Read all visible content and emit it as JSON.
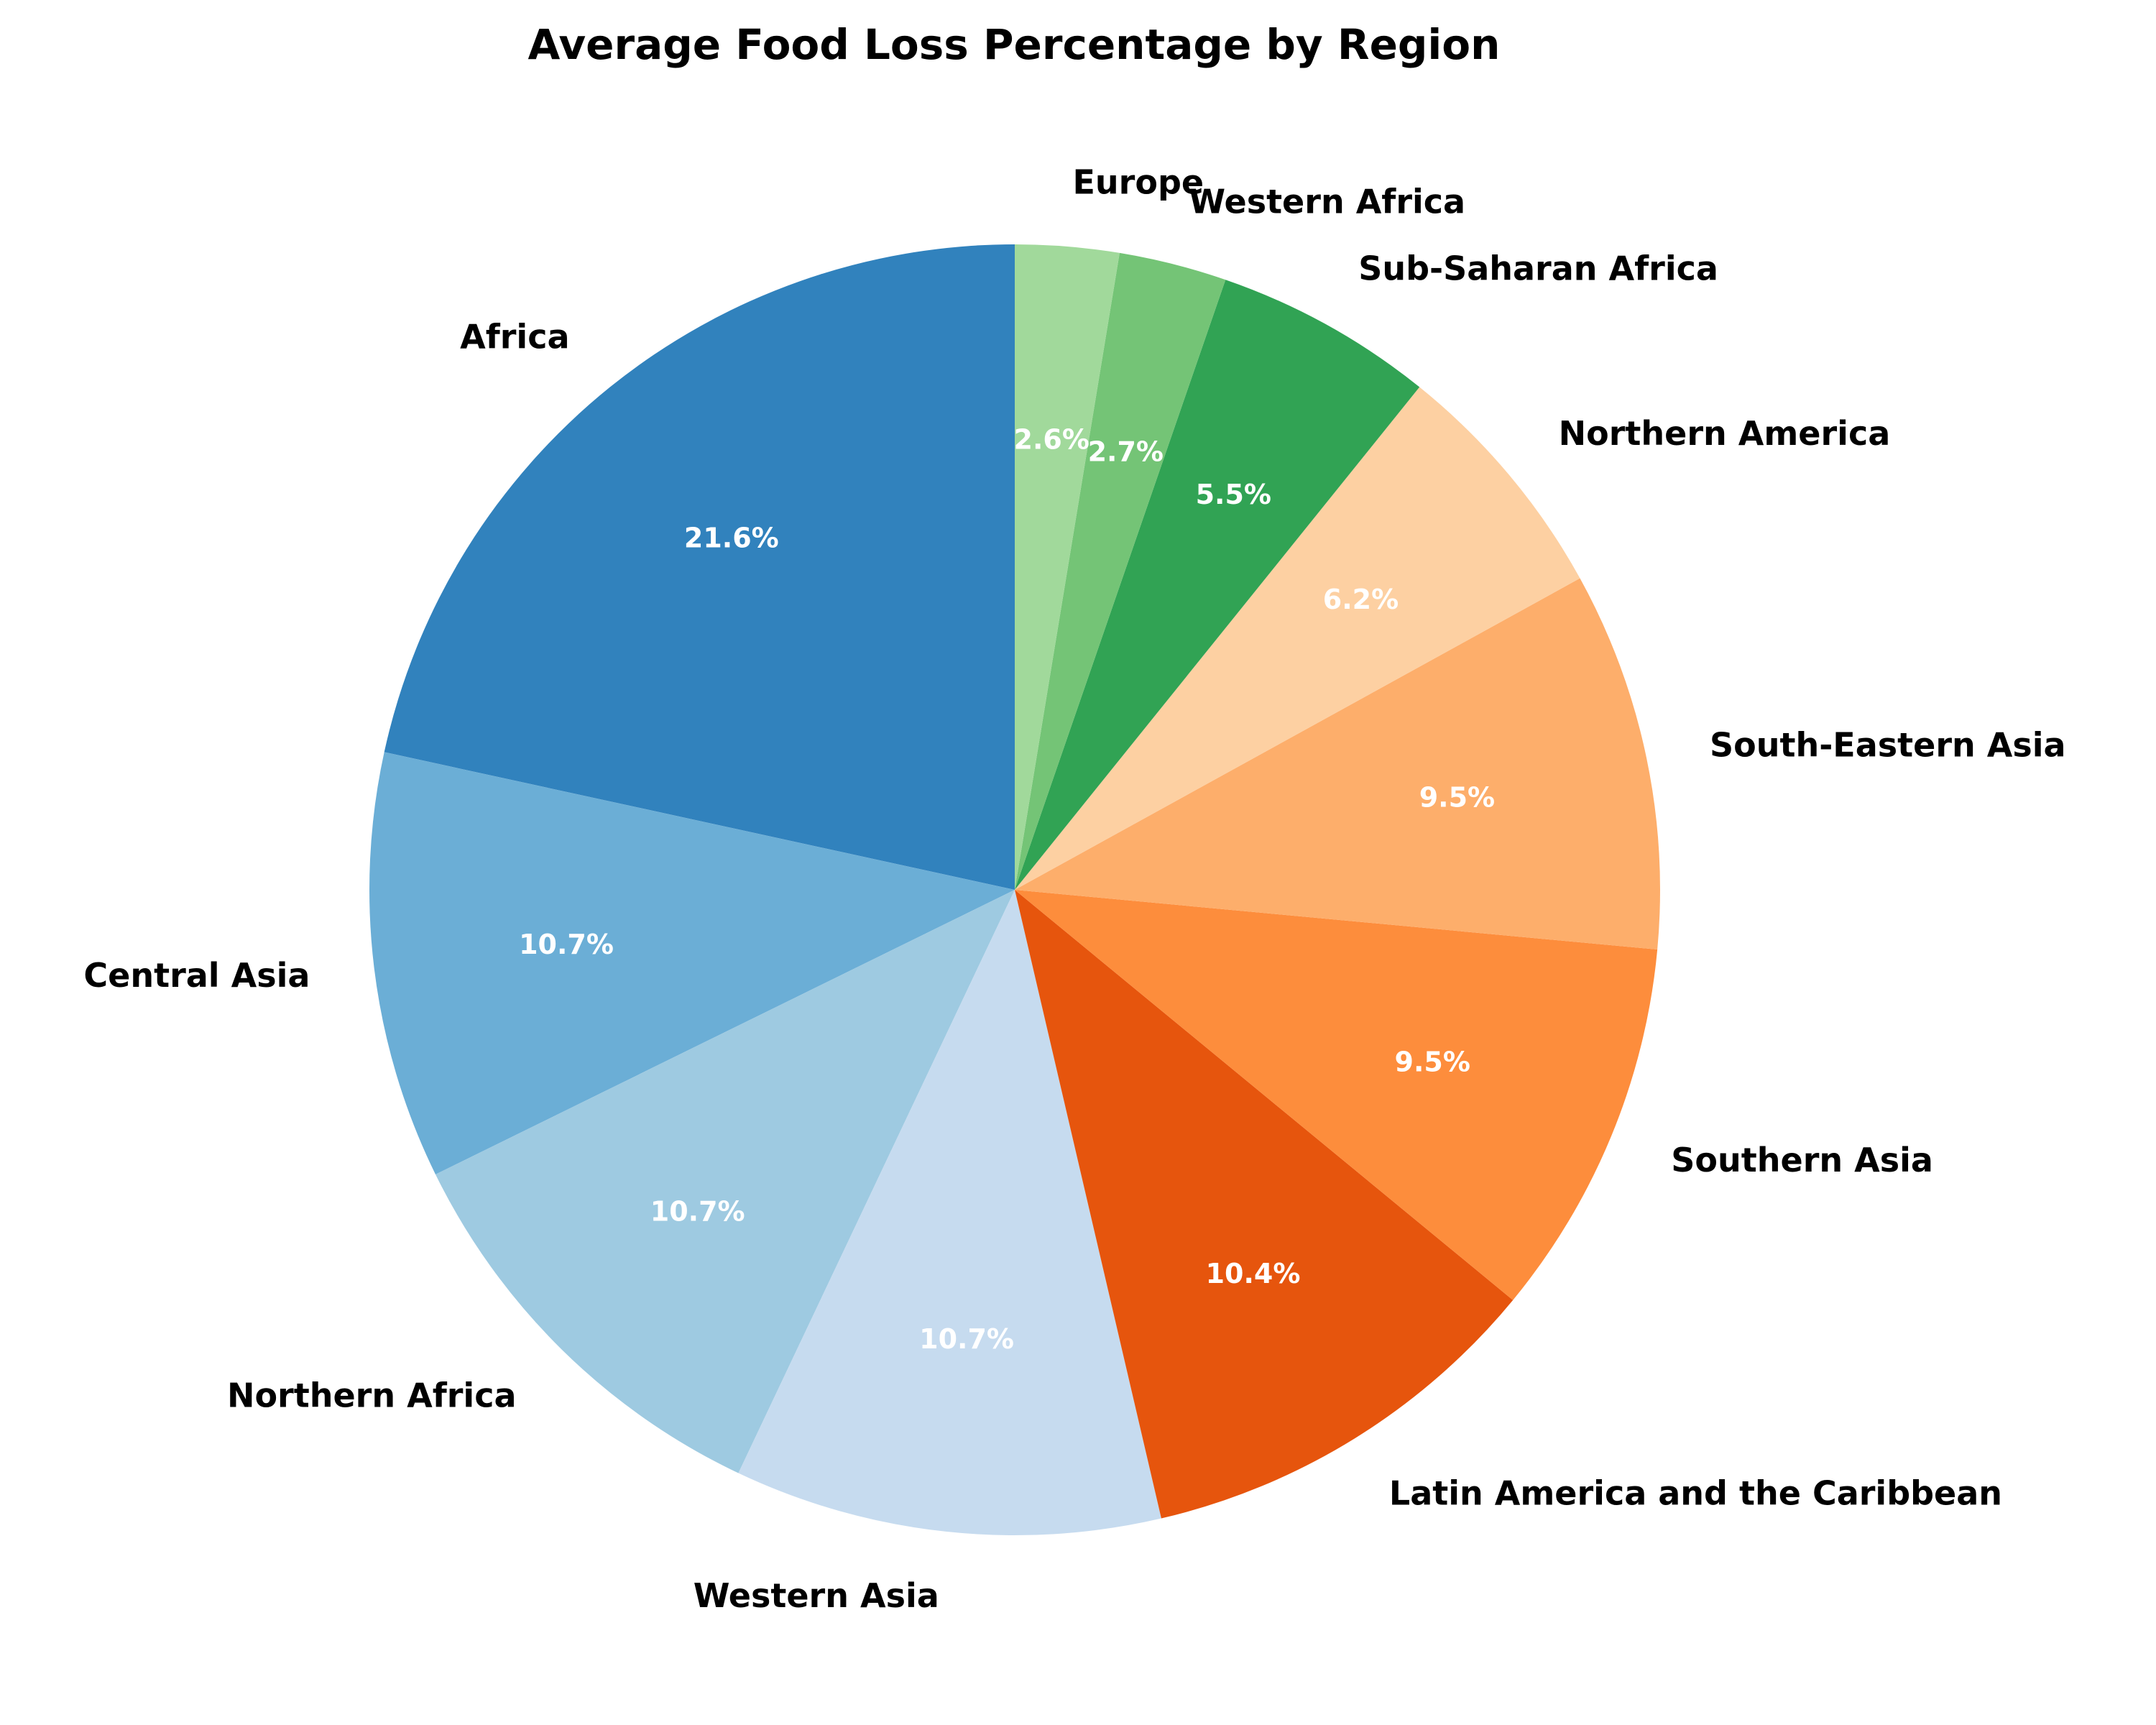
{
  "chart_data": {
    "type": "pie",
    "title": "Average Food Loss Percentage by Region",
    "categories": [
      "Africa",
      "Central Asia",
      "Northern Africa",
      "Western Asia",
      "Latin America and the Caribbean",
      "Southern Asia",
      "South-Eastern Asia",
      "Northern America",
      "Sub-Saharan Africa",
      "Western Africa",
      "Europe"
    ],
    "values": [
      21.6,
      10.7,
      10.7,
      10.7,
      10.4,
      9.5,
      9.5,
      6.2,
      5.5,
      2.7,
      2.6
    ],
    "value_labels": [
      "21.6%",
      "10.7%",
      "10.7%",
      "10.7%",
      "10.4%",
      "9.5%",
      "9.5%",
      "6.2%",
      "5.5%",
      "2.7%",
      "2.6%"
    ],
    "colors": [
      "#3182bd",
      "#6baed6",
      "#9ecae1",
      "#c6dbef",
      "#e6550d",
      "#fd8d3c",
      "#fdae6b",
      "#fdd0a2",
      "#31a354",
      "#74c476",
      "#a1d99b"
    ],
    "start_angle_deg": 90,
    "direction": "counterclockwise",
    "legend": "none"
  }
}
